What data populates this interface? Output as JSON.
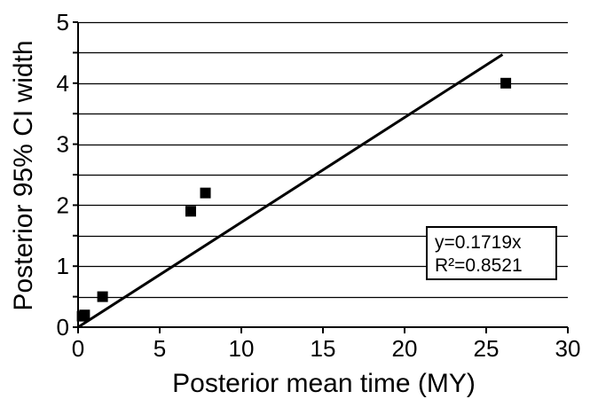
{
  "chart_data": {
    "type": "scatter",
    "xlabel": "Posterior mean time (MY)",
    "ylabel": "Posterior 95% CI width",
    "xlim": [
      0,
      30
    ],
    "ylim": [
      0,
      5
    ],
    "x_ticks": [
      "0",
      "5",
      "10",
      "15",
      "20",
      "25",
      "30"
    ],
    "y_ticks": [
      "0",
      "1",
      "2",
      "3",
      "4",
      "5"
    ],
    "grid": "horizontal, every 0.5",
    "series": [
      {
        "marker": "square",
        "color": "#000000",
        "points": [
          {
            "x": 0.25,
            "y": 0.18
          },
          {
            "x": 0.4,
            "y": 0.2
          },
          {
            "x": 1.5,
            "y": 0.5
          },
          {
            "x": 6.9,
            "y": 1.9
          },
          {
            "x": 7.8,
            "y": 2.2
          },
          {
            "x": 26.2,
            "y": 4.0
          }
        ]
      }
    ],
    "trendline": {
      "slope": 0.1719,
      "x_range": [
        0,
        26
      ]
    },
    "annotation": {
      "lines": [
        "y=0.1719x",
        "R²=0.8521"
      ],
      "placement": "right"
    }
  }
}
